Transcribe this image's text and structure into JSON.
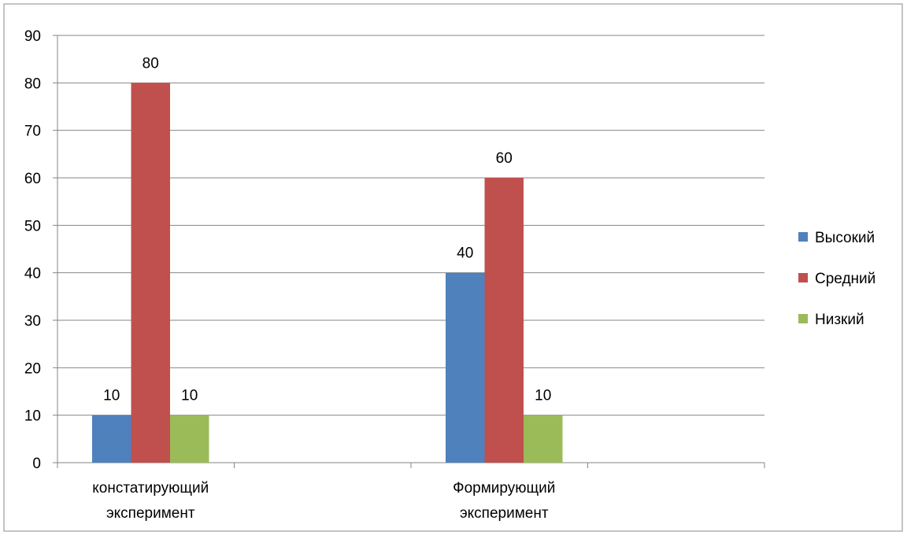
{
  "chart_data": {
    "type": "bar",
    "categories": [
      "констатирующий эксперимент",
      "Формирующий эксперимент"
    ],
    "category_lines": [
      [
        "констатирующий",
        "эксперимент"
      ],
      [
        "Формирующий",
        "эксперимент"
      ]
    ],
    "series": [
      {
        "name": "Высокий",
        "color": "#4F81BD",
        "values": [
          10,
          40
        ]
      },
      {
        "name": "Средний",
        "color": "#C0504D",
        "values": [
          80,
          60
        ]
      },
      {
        "name": "Низкий",
        "color": "#9BBB59",
        "values": [
          10,
          10
        ]
      }
    ],
    "ylim": [
      0,
      90
    ],
    "yticks": [
      0,
      10,
      20,
      30,
      40,
      50,
      60,
      70,
      80,
      90
    ],
    "grid": true,
    "legend": "right",
    "title": "",
    "xlabel": "",
    "ylabel": ""
  }
}
